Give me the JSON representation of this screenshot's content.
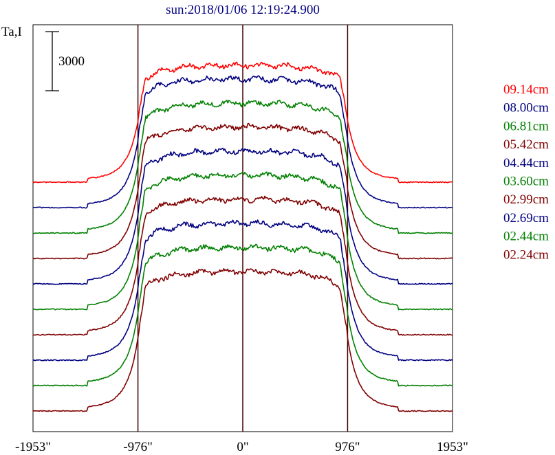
{
  "chart_data": {
    "type": "line",
    "title": "sun:2018/01/06 12:19:24.900",
    "ylabel": "Ta,I",
    "scale_bar_label": "3000",
    "x_ticks": [
      {
        "value": -1953,
        "label": "-1953\""
      },
      {
        "value": -976,
        "label": "-976\""
      },
      {
        "value": 0,
        "label": "0\""
      },
      {
        "value": 976,
        "label": "976\""
      },
      {
        "value": 1953,
        "label": "1953\""
      }
    ],
    "xlim": [
      -1953,
      1953
    ],
    "vertical_lines": [
      -976,
      0,
      976
    ],
    "series": [
      {
        "name": "09.14cm",
        "color": "#ff0000"
      },
      {
        "name": "08.00cm",
        "color": "#000080"
      },
      {
        "name": "06.81cm",
        "color": "#008000"
      },
      {
        "name": "05.42cm",
        "color": "#800000"
      },
      {
        "name": "04.44cm",
        "color": "#000080"
      },
      {
        "name": "03.60cm",
        "color": "#008000"
      },
      {
        "name": "02.99cm",
        "color": "#800000"
      },
      {
        "name": "02.69cm",
        "color": "#000080"
      },
      {
        "name": "02.44cm",
        "color": "#008000"
      },
      {
        "name": "02.24cm",
        "color": "#800000"
      }
    ]
  }
}
